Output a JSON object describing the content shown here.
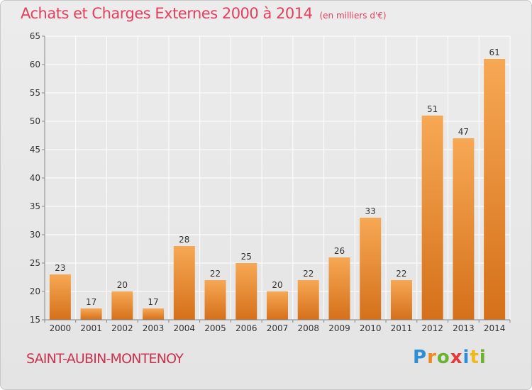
{
  "header": {
    "title": "Achats et Charges Externes 2000 à 2014",
    "unit": "(en milliers d'€)"
  },
  "footer": {
    "commune": "SAINT-AUBIN-MONTENOY",
    "logo": {
      "letters": [
        "P",
        "r",
        "o",
        "x",
        "i",
        "t",
        "i"
      ],
      "colors": [
        "#2a8fd6",
        "#f08a1c",
        "#6bb22e",
        "#e23a3a",
        "#2a8fd6",
        "#f0b81c",
        "#6bb22e"
      ]
    }
  },
  "chart_data": {
    "type": "bar",
    "categories": [
      "2000",
      "2001",
      "2002",
      "2003",
      "2004",
      "2005",
      "2006",
      "2007",
      "2008",
      "2009",
      "2010",
      "2011",
      "2012",
      "2013",
      "2014"
    ],
    "values": [
      23,
      17,
      20,
      17,
      28,
      22,
      25,
      20,
      22,
      26,
      33,
      22,
      51,
      47,
      61
    ],
    "ylim": [
      15,
      65
    ],
    "yticks": [
      15,
      20,
      25,
      30,
      35,
      40,
      45,
      50,
      55,
      60,
      65
    ],
    "grid": true,
    "colors": {
      "bar_top": "#f7a854",
      "bar_bottom": "#d5701a",
      "grid": "#ffffff",
      "axis": "#888888",
      "text": "#333333"
    }
  }
}
